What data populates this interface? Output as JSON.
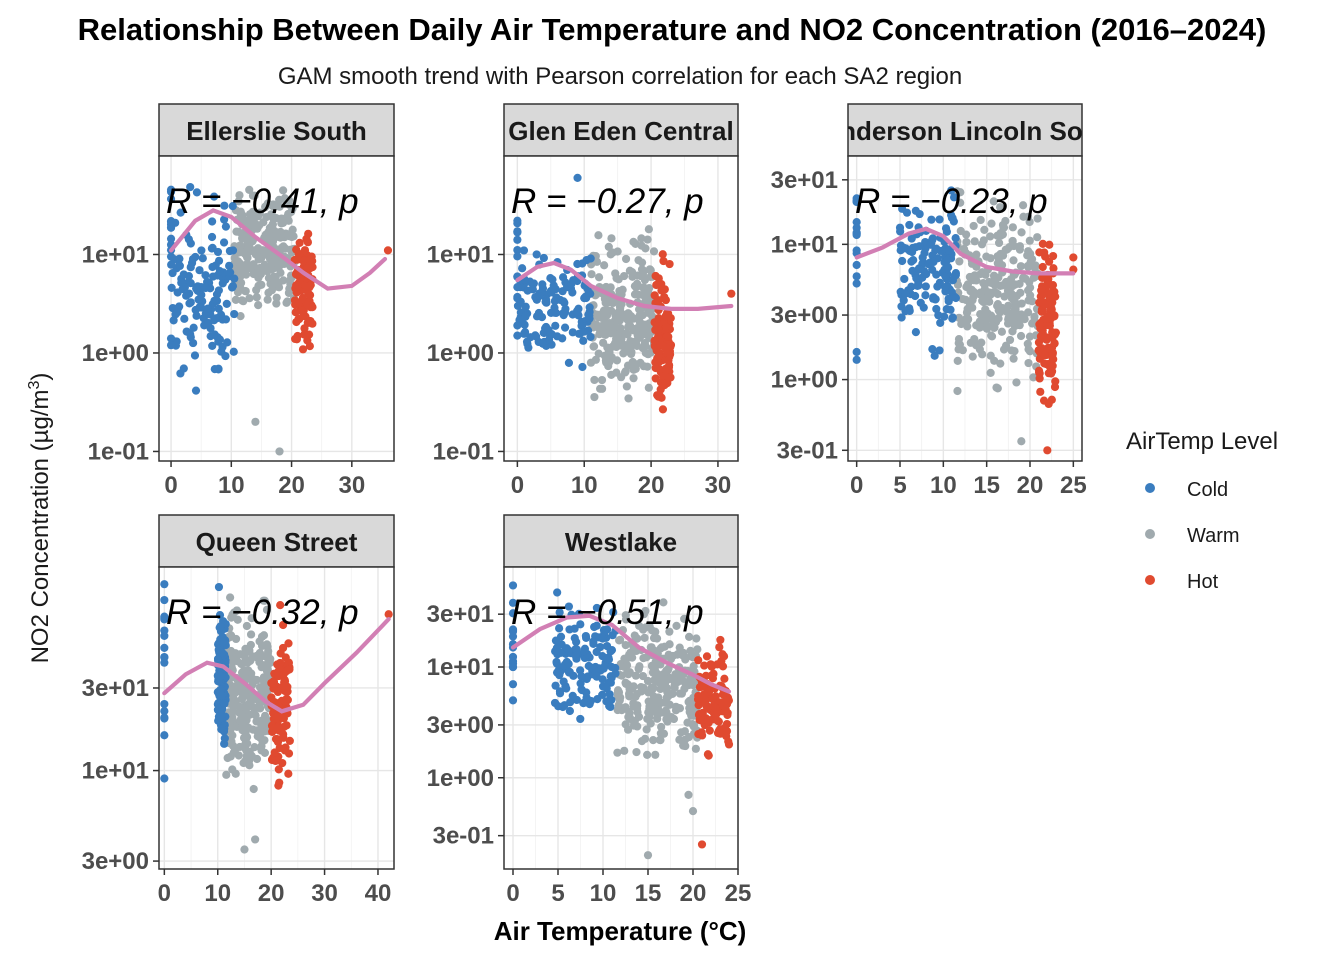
{
  "title": "Relationship Between Daily Air Temperature and  NO2  Concentration (2016–2024)",
  "subtitle": "GAM smooth trend with Pearson correlation for each SA2 region",
  "xlabel": "Air Temperature (°C)",
  "ylabel_main": "NO2 Concentration (µg/m",
  "ylabel_sup": "3",
  "ylabel_close": ")",
  "legend": {
    "title": "AirTemp Level",
    "items": [
      {
        "label": "Cold",
        "color": "#3a7dbf"
      },
      {
        "label": "Warm",
        "color": "#a0aaae"
      },
      {
        "label": "Hot",
        "color": "#e04a30"
      }
    ]
  },
  "chart_data": [
    {
      "type": "scatter",
      "panel": "Ellerslie South",
      "y_scale": "log10",
      "xlim": [
        -2,
        37
      ],
      "ylim": [
        0.08,
        100
      ],
      "x_ticks": [
        0,
        10,
        20,
        30
      ],
      "y_ticks": [
        {
          "v": 0.1,
          "label": "1e-01"
        },
        {
          "v": 1,
          "label": "1e+00"
        },
        {
          "v": 10,
          "label": "1e+01"
        }
      ],
      "groups": {
        "cold": [
          0,
          10.5
        ],
        "warm": [
          10.5,
          20.5
        ],
        "hot": [
          20.5,
          23.5
        ]
      },
      "bulk_range": [
        2,
        70
      ],
      "cold_range": [
        0.25,
        60
      ],
      "hot_range": [
        0.8,
        30
      ],
      "outliers": [
        {
          "x": 0,
          "y": 1.4
        },
        {
          "x": 0,
          "y": 1.2
        },
        {
          "x": 14,
          "y": 0.2
        },
        {
          "x": 18,
          "y": 0.1
        },
        {
          "x": 36,
          "y": 11
        }
      ],
      "gam": [
        [
          0,
          11
        ],
        [
          4,
          22
        ],
        [
          7,
          28
        ],
        [
          10,
          24
        ],
        [
          14,
          15
        ],
        [
          18,
          10
        ],
        [
          22,
          6.5
        ],
        [
          26,
          4.5
        ],
        [
          30,
          4.8
        ],
        [
          33,
          6.5
        ],
        [
          35.5,
          9
        ]
      ],
      "annotation": "R = −0.41, p"
    },
    {
      "type": "scatter",
      "panel": "Glen Eden Central",
      "y_scale": "log10",
      "xlim": [
        -2,
        33
      ],
      "ylim": [
        0.08,
        100
      ],
      "x_ticks": [
        0,
        10,
        20,
        30
      ],
      "y_ticks": [
        {
          "v": 0.1,
          "label": "1e-01"
        },
        {
          "v": 1,
          "label": "1e+00"
        },
        {
          "v": 10,
          "label": "1e+01"
        }
      ],
      "groups": {
        "cold": [
          0,
          11
        ],
        "warm": [
          11,
          20.5
        ],
        "hot": [
          20.5,
          23
        ]
      },
      "bulk_range": [
        0.2,
        30
      ],
      "cold_range": [
        0.5,
        22
      ],
      "hot_range": [
        0.15,
        14
      ],
      "outliers": [
        {
          "x": 0,
          "y": 1.9
        },
        {
          "x": 0,
          "y": 1.5
        },
        {
          "x": 9,
          "y": 60
        },
        {
          "x": 32,
          "y": 4
        }
      ],
      "gam": [
        [
          0,
          5.5
        ],
        [
          3,
          7.5
        ],
        [
          5.5,
          8.2
        ],
        [
          8,
          7
        ],
        [
          11,
          4.8
        ],
        [
          15,
          3.6
        ],
        [
          19,
          3.0
        ],
        [
          23,
          2.8
        ],
        [
          27,
          2.8
        ],
        [
          32,
          3.0
        ]
      ],
      "annotation": "R = −0.27, p"
    },
    {
      "type": "scatter",
      "panel": "Henderson Lincoln South",
      "y_scale": "log10",
      "xlim": [
        -1,
        26
      ],
      "ylim": [
        0.25,
        45
      ],
      "x_ticks": [
        0,
        5,
        10,
        15,
        20,
        25
      ],
      "y_ticks": [
        {
          "v": 0.3,
          "label": "3e-01"
        },
        {
          "v": 1,
          "label": "1e+00"
        },
        {
          "v": 3,
          "label": "3e+00"
        },
        {
          "v": 10,
          "label": "1e+01"
        },
        {
          "v": 30,
          "label": "3e+01"
        }
      ],
      "groups": {
        "cold": [
          5,
          11.5
        ],
        "warm": [
          11.5,
          21
        ],
        "hot": [
          21,
          23
        ]
      },
      "bulk_range": [
        0.6,
        32
      ],
      "cold_range": [
        1.5,
        30
      ],
      "hot_range": [
        0.35,
        18
      ],
      "outliers": [
        {
          "x": 0,
          "y": 1.6
        },
        {
          "x": 0,
          "y": 1.4
        },
        {
          "x": 0,
          "y": 9
        },
        {
          "x": 0,
          "y": 12
        },
        {
          "x": 9,
          "y": 1.5
        },
        {
          "x": 19,
          "y": 0.35
        },
        {
          "x": 22,
          "y": 0.3
        },
        {
          "x": 25,
          "y": 8
        },
        {
          "x": 25,
          "y": 6.5
        }
      ],
      "gam": [
        [
          0,
          8
        ],
        [
          3,
          9.5
        ],
        [
          6,
          12
        ],
        [
          8,
          13
        ],
        [
          10,
          11.5
        ],
        [
          12,
          8.5
        ],
        [
          15,
          6.8
        ],
        [
          18,
          6.3
        ],
        [
          21,
          6.1
        ],
        [
          25,
          6.1
        ]
      ],
      "annotation": "R = −0.23, p"
    },
    {
      "type": "scatter",
      "panel": "Queen Street",
      "y_scale": "log10",
      "xlim": [
        -1,
        43
      ],
      "ylim": [
        2.7,
        150
      ],
      "x_ticks": [
        0,
        10,
        20,
        30,
        40
      ],
      "y_ticks": [
        {
          "v": 3,
          "label": "3e+00"
        },
        {
          "v": 10,
          "label": "1e+01"
        },
        {
          "v": 30,
          "label": "3e+01"
        }
      ],
      "groups": {
        "cold": [
          10,
          11.5
        ],
        "warm": [
          11.5,
          20
        ],
        "hot": [
          20,
          23.5
        ]
      },
      "bulk_range": [
        6,
        130
      ],
      "cold_range": [
        10,
        120
      ],
      "hot_range": [
        5.5,
        95
      ],
      "outliers": [
        {
          "x": 0,
          "y": 9
        },
        {
          "x": 0,
          "y": 16
        },
        {
          "x": 0,
          "y": 20
        },
        {
          "x": 0,
          "y": 45
        },
        {
          "x": 0,
          "y": 60
        },
        {
          "x": 17,
          "y": 4
        },
        {
          "x": 15,
          "y": 3.5
        },
        {
          "x": 42,
          "y": 80
        }
      ],
      "gam": [
        [
          0,
          28
        ],
        [
          4,
          36
        ],
        [
          8,
          42
        ],
        [
          11,
          40
        ],
        [
          15,
          32
        ],
        [
          19,
          25
        ],
        [
          22,
          22
        ],
        [
          26,
          24
        ],
        [
          30,
          32
        ],
        [
          36,
          48
        ],
        [
          42,
          75
        ]
      ],
      "annotation": "R = −0.32, p"
    },
    {
      "type": "scatter",
      "panel": "Westlake",
      "y_scale": "log10",
      "xlim": [
        -1,
        25
      ],
      "ylim": [
        0.15,
        80
      ],
      "x_ticks": [
        0,
        5,
        10,
        15,
        20,
        25
      ],
      "y_ticks": [
        {
          "v": 0.3,
          "label": "3e-01"
        },
        {
          "v": 1,
          "label": "1e+00"
        },
        {
          "v": 3,
          "label": "3e+00"
        },
        {
          "v": 10,
          "label": "1e+01"
        },
        {
          "v": 30,
          "label": "3e+01"
        }
      ],
      "groups": {
        "cold": [
          4.5,
          11.5
        ],
        "warm": [
          11.5,
          20.5
        ],
        "hot": [
          20.5,
          24
        ]
      },
      "bulk_range": [
        1,
        55
      ],
      "cold_range": [
        2.5,
        55
      ],
      "hot_range": [
        1.2,
        25
      ],
      "outliers": [
        {
          "x": 0,
          "y": 5
        },
        {
          "x": 0,
          "y": 7
        },
        {
          "x": 0,
          "y": 10
        },
        {
          "x": 0,
          "y": 15
        },
        {
          "x": 20,
          "y": 0.5
        },
        {
          "x": 21,
          "y": 0.25
        },
        {
          "x": 15,
          "y": 0.2
        },
        {
          "x": 19.5,
          "y": 0.7
        },
        {
          "x": 24,
          "y": 2
        }
      ],
      "gam": [
        [
          0,
          15
        ],
        [
          3,
          22
        ],
        [
          6,
          28
        ],
        [
          8.5,
          29
        ],
        [
          11,
          24
        ],
        [
          14,
          15
        ],
        [
          17,
          11
        ],
        [
          20,
          8.5
        ],
        [
          22,
          7
        ],
        [
          24,
          6
        ]
      ],
      "annotation": "R = −0.51, p"
    }
  ]
}
